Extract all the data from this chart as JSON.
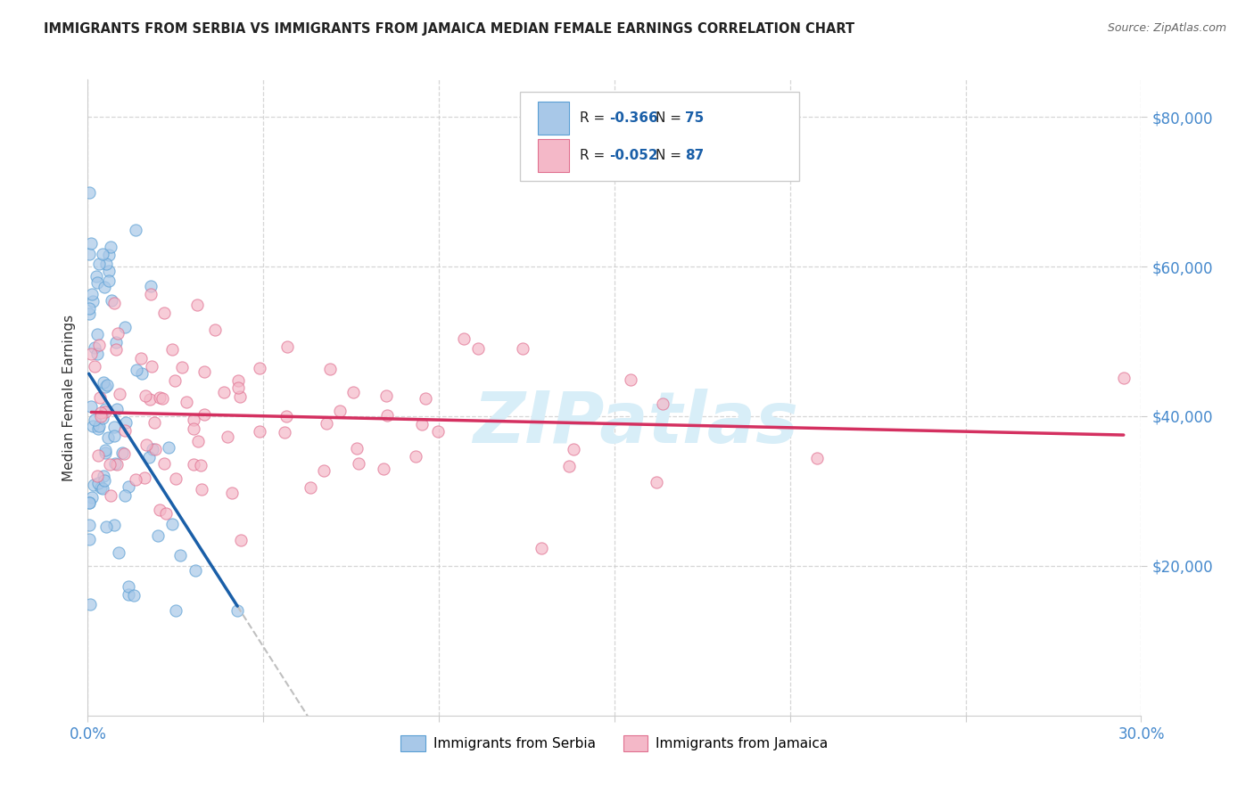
{
  "title": "IMMIGRANTS FROM SERBIA VS IMMIGRANTS FROM JAMAICA MEDIAN FEMALE EARNINGS CORRELATION CHART",
  "source": "Source: ZipAtlas.com",
  "ylabel": "Median Female Earnings",
  "serbia_R": -0.366,
  "serbia_N": 75,
  "jamaica_R": -0.052,
  "jamaica_N": 87,
  "serbia_color": "#a8c8e8",
  "serbia_edge_color": "#5a9fd4",
  "jamaica_color": "#f4b8c8",
  "jamaica_edge_color": "#e07090",
  "serbia_line_color": "#1a5fa8",
  "jamaica_line_color": "#d43060",
  "dashed_line_color": "#c0c0c0",
  "watermark": "ZIPatlas",
  "watermark_color": "#d8eef8",
  "xlim": [
    0.0,
    0.3
  ],
  "ylim": [
    0,
    85000
  ],
  "yticks": [
    20000,
    40000,
    60000,
    80000
  ],
  "grid_color": "#cccccc",
  "title_color": "#222222",
  "source_color": "#666666",
  "tick_color": "#4488cc",
  "legend_border_color": "#cccccc",
  "legend_R_color": "#1a5fa8",
  "legend_N_color": "#1a5fa8"
}
